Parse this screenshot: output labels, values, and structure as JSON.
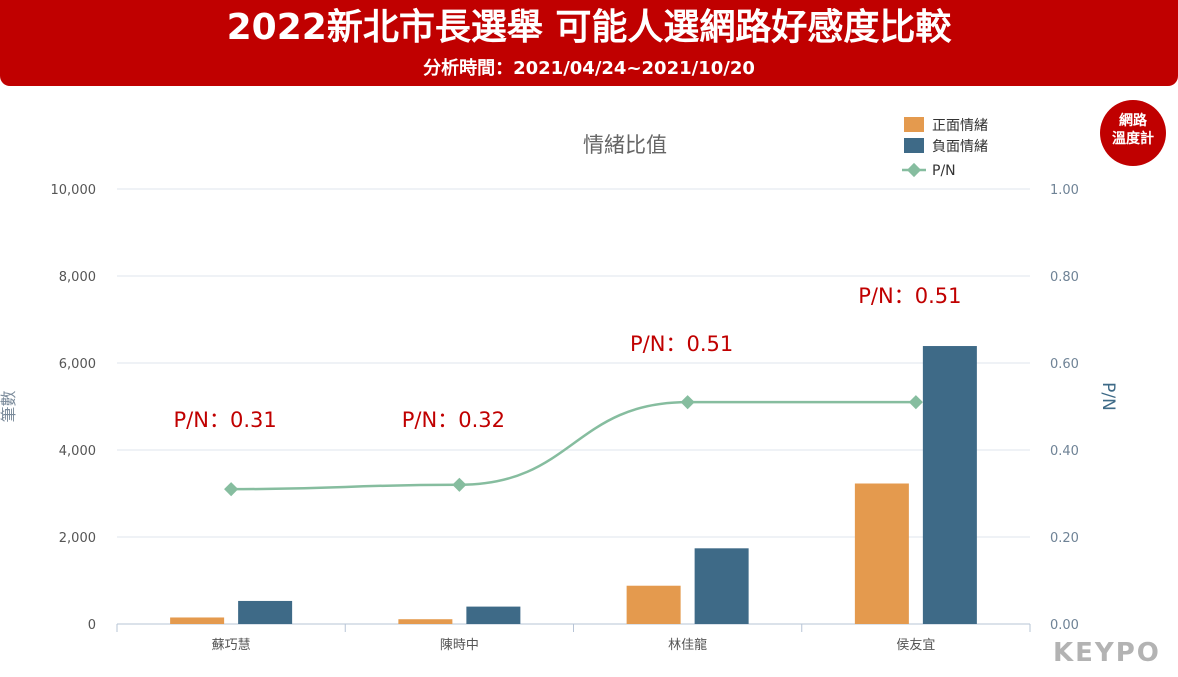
{
  "header": {
    "title": "2022新北市長選舉 可能人選網路好感度比較",
    "subtitle": "分析時間：2021/04/24~2021/10/20"
  },
  "logo": {
    "line1": "網路",
    "line2": "溫度計"
  },
  "watermark": "KEYPO",
  "chart_data": {
    "type": "bar",
    "title": "情緒比值",
    "categories": [
      "蘇巧慧",
      "陳時中",
      "林佳龍",
      "侯友宜"
    ],
    "ylabel": "筆數",
    "y2label": "P/N",
    "ylim": [
      0,
      10000
    ],
    "y2lim": [
      0,
      1.0
    ],
    "yticks": [
      "0",
      "2,000",
      "4,000",
      "6,000",
      "8,000",
      "10,000"
    ],
    "y2ticks": [
      "0.00",
      "0.20",
      "0.40",
      "0.60",
      "0.80",
      "1.00"
    ],
    "grid": true,
    "legend_position": "top-right",
    "series": [
      {
        "name": "正面情緒",
        "type": "bar",
        "axis": "left",
        "color": "#e49a4e",
        "values": [
          150,
          110,
          880,
          3230
        ]
      },
      {
        "name": "負面情緒",
        "type": "bar",
        "axis": "left",
        "color": "#3e6a87",
        "values": [
          530,
          400,
          1740,
          6390
        ]
      },
      {
        "name": "P/N",
        "type": "line",
        "axis": "right",
        "color": "#86bd9f",
        "values": [
          0.31,
          0.32,
          0.51,
          0.51
        ]
      }
    ],
    "annotations": [
      "P/N：0.31",
      "P/N：0.32",
      "P/N：0.51",
      "P/N：0.51"
    ]
  }
}
